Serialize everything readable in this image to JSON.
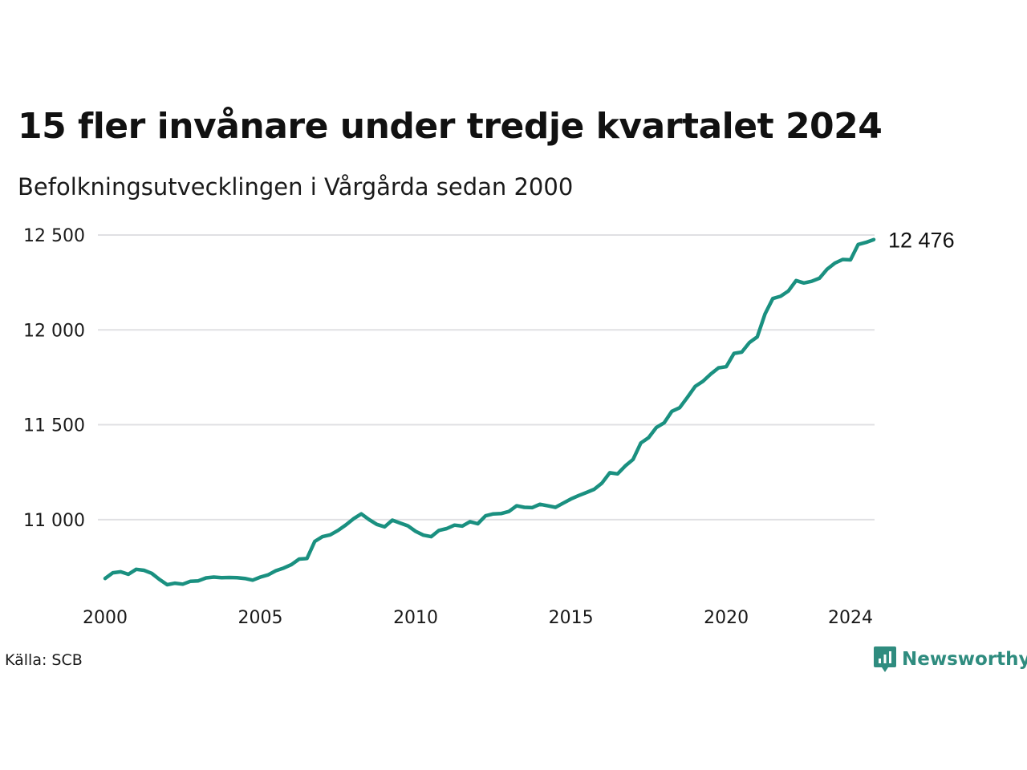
{
  "title": "15 fler invånare under tredje kvartalet 2024",
  "subtitle": "Befolkningsutvecklingen i Vårgårda sedan 2000",
  "source": "Källa: SCB",
  "brand": "Newsworthy",
  "colors": {
    "line": "#1a9080",
    "grid": "#e0e0e3",
    "text": "#1a1a1a",
    "brand": "#2f8c7f"
  },
  "chart_data": {
    "type": "line",
    "title": "15 fler invånare under tredje kvartalet 2024",
    "subtitle": "Befolkningsutvecklingen i Vårgårda sedan 2000",
    "x_ticks": [
      "2000",
      "2005",
      "2010",
      "2015",
      "2020",
      "2024"
    ],
    "y_ticks": [
      "11 000",
      "11 500",
      "12 000",
      "12 500"
    ],
    "xlim": [
      2000.0,
      2024.75
    ],
    "ylim": [
      10640,
      12500
    ],
    "grid": true,
    "end_label": "12 476",
    "series": [
      {
        "x": [
          2000.0,
          2000.25,
          2000.5,
          2000.75,
          2001.0,
          2001.25,
          2001.5,
          2001.75,
          2002.0,
          2002.25,
          2002.5,
          2002.75,
          2003.0,
          2003.25,
          2003.5,
          2003.75,
          2004.0,
          2004.25,
          2004.5,
          2004.75,
          2005.0,
          2005.25,
          2005.5,
          2005.75,
          2006.0,
          2006.25,
          2006.5,
          2006.75,
          2007.0,
          2007.25,
          2007.5,
          2007.75,
          2008.0,
          2008.25,
          2008.5,
          2008.75,
          2009.0,
          2009.25,
          2009.5,
          2009.75,
          2010.0,
          2010.25,
          2010.5,
          2010.75,
          2011.0,
          2011.25,
          2011.5,
          2011.75,
          2012.0,
          2012.25,
          2012.5,
          2012.75,
          2013.0,
          2013.25,
          2013.5,
          2013.75,
          2014.0,
          2014.25,
          2014.5,
          2014.75,
          2015.0,
          2015.25,
          2015.5,
          2015.75,
          2016.0,
          2016.25,
          2016.5,
          2016.75,
          2017.0,
          2017.25,
          2017.5,
          2017.75,
          2018.0,
          2018.25,
          2018.5,
          2018.75,
          2019.0,
          2019.25,
          2019.5,
          2019.75,
          2020.0,
          2020.25,
          2020.5,
          2020.75,
          2021.0,
          2021.25,
          2021.5,
          2021.75,
          2022.0,
          2022.25,
          2022.5,
          2022.75,
          2023.0,
          2023.25,
          2023.5,
          2023.75,
          2024.0,
          2024.25,
          2024.5,
          2024.75
        ],
        "values": [
          10690,
          10720,
          10725,
          10712,
          10738,
          10733,
          10717,
          10685,
          10657,
          10665,
          10660,
          10675,
          10677,
          10693,
          10697,
          10694,
          10695,
          10694,
          10690,
          10681,
          10697,
          10709,
          10731,
          10745,
          10763,
          10792,
          10795,
          10885,
          10910,
          10920,
          10943,
          10972,
          11005,
          11030,
          11000,
          10975,
          10962,
          10997,
          10982,
          10967,
          10938,
          10918,
          10910,
          10943,
          10953,
          10971,
          10966,
          10989,
          10978,
          11020,
          11030,
          11032,
          11043,
          11073,
          11065,
          11063,
          11081,
          11073,
          11065,
          11087,
          11109,
          11127,
          11143,
          11160,
          11193,
          11247,
          11241,
          11283,
          11317,
          11404,
          11432,
          11486,
          11510,
          11571,
          11590,
          11645,
          11702,
          11729,
          11767,
          11800,
          11806,
          11876,
          11883,
          11934,
          11963,
          12084,
          12165,
          12177,
          12205,
          12260,
          12247,
          12256,
          12272,
          12320,
          12352,
          12371,
          12369,
          12450,
          12461,
          12476
        ]
      }
    ]
  }
}
